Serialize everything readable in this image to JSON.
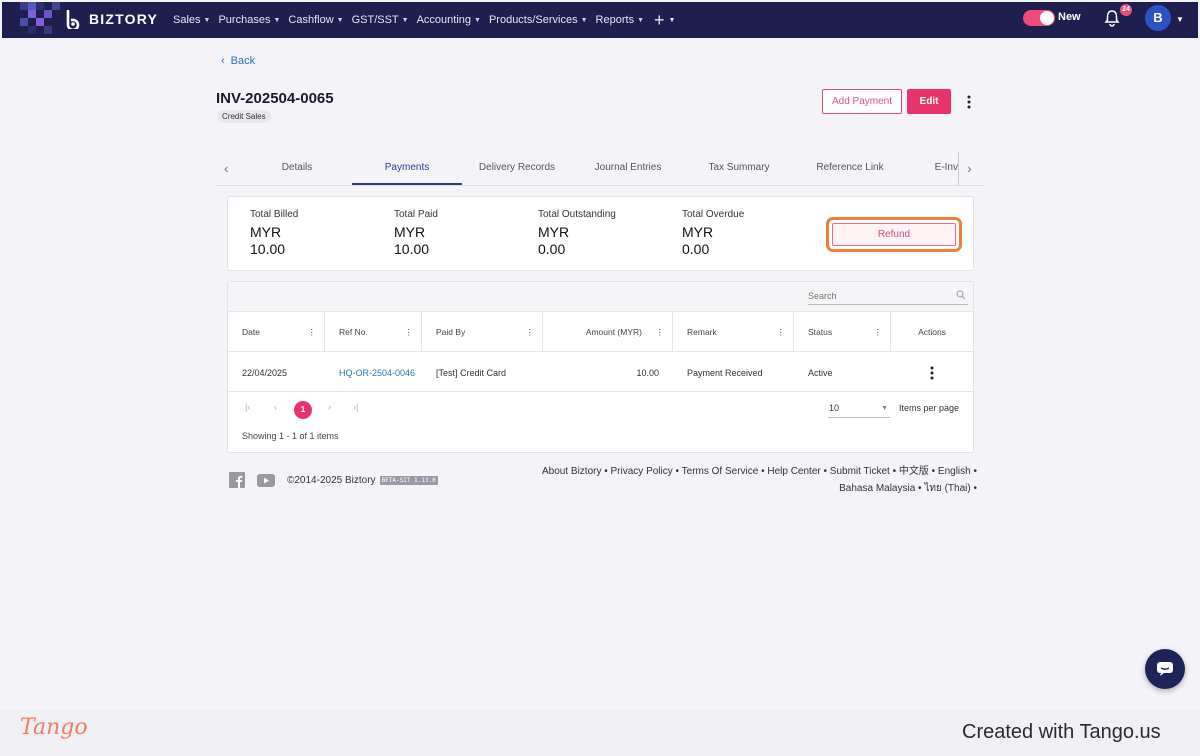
{
  "brand": {
    "name": "BIZTORY"
  },
  "nav": {
    "menu": [
      "Sales",
      "Purchases",
      "Cashflow",
      "GST/SST",
      "Accounting",
      "Products/Services",
      "Reports"
    ],
    "toggle_label": "New",
    "notification_count": "24",
    "avatar_initial": "B"
  },
  "page": {
    "back_label": "Back",
    "invoice_no": "INV-202504-0065",
    "chip": "Credit Sales",
    "add_payment_label": "Add Payment",
    "edit_label": "Edit"
  },
  "tabs": [
    "Details",
    "Payments",
    "Delivery Records",
    "Journal Entries",
    "Tax Summary",
    "Reference Link",
    "E-Inv"
  ],
  "summary": [
    {
      "label": "Total Billed",
      "currency": "MYR",
      "value": "10.00"
    },
    {
      "label": "Total Paid",
      "currency": "MYR",
      "value": "10.00"
    },
    {
      "label": "Total Outstanding",
      "currency": "MYR",
      "value": "0.00"
    },
    {
      "label": "Total Overdue",
      "currency": "MYR",
      "value": "0.00"
    }
  ],
  "refund_label": "Refund",
  "grid": {
    "search_placeholder": "Search",
    "columns": [
      "Date",
      "Ref No.",
      "Paid By",
      "Amount (MYR)",
      "Remark",
      "Status",
      "Actions"
    ],
    "rows": [
      {
        "date": "22/04/2025",
        "ref": "HQ-OR-2504-0046",
        "paid_by": "[Test] Credit Card",
        "amount": "10.00",
        "remark": "Payment Received",
        "status": "Active"
      }
    ],
    "current_page": "1",
    "page_size": "10",
    "items_per_page_label": "Items per page",
    "showing": "Showing 1 - 1 of 1 items"
  },
  "footer": {
    "copyright": "©2014-2025 Biztory",
    "beta": "BETA-SIT 1.13.0",
    "links_line1": "About Biztory • Privacy Policy • Terms Of Service • Help Center • Submit Ticket • 中文版 • English •",
    "links_line2": "Bahasa Malaysia • ไทย (Thai) •"
  },
  "tango": {
    "logo": "Tango",
    "credit": "Created with Tango.us"
  },
  "colors": {
    "nav_bg": "#1e1f4e",
    "accent": "#e8346c",
    "link": "#2c6fbf",
    "highlight": "#f07d3a"
  }
}
